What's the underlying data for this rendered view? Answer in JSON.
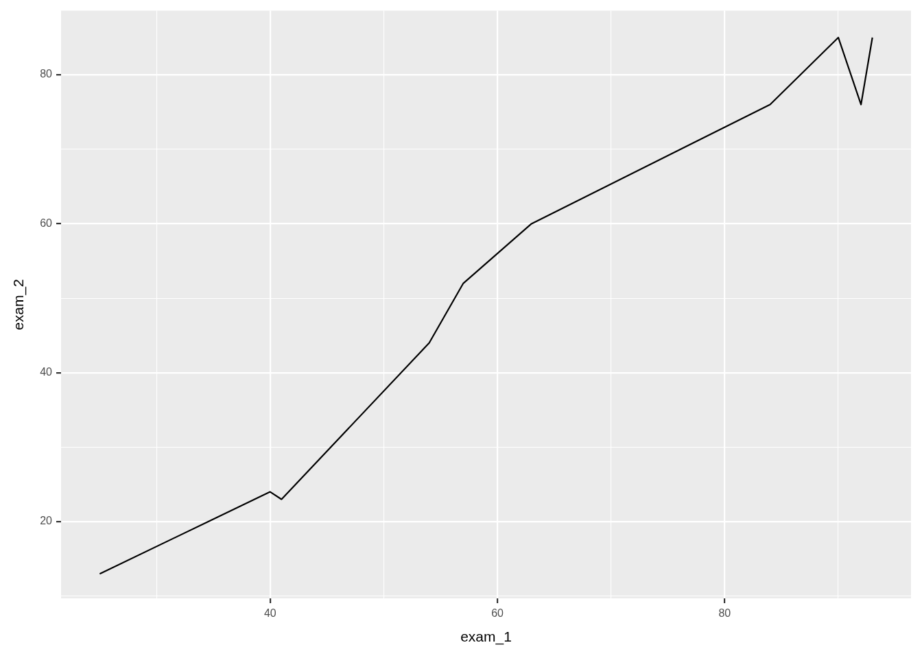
{
  "chart_data": {
    "type": "line",
    "xlabel": "exam_1",
    "ylabel": "exam_2",
    "x": [
      25,
      40,
      41,
      54,
      57,
      63,
      84,
      90,
      92,
      93
    ],
    "series": [
      {
        "color": "#000000",
        "values": [
          13,
          24,
          23,
          44,
          52,
          60,
          76,
          85,
          76,
          85
        ]
      }
    ],
    "xlim": [
      21.6,
      96.4
    ],
    "ylim": [
      9.7,
      88.6
    ],
    "xticks": [
      {
        "value": 30,
        "label": null
      },
      40,
      {
        "value": 50,
        "label": null
      },
      60,
      {
        "value": 70,
        "label": null
      },
      80,
      {
        "value": 90,
        "label": null
      }
    ],
    "yticks": [
      {
        "value": 10,
        "label": null
      },
      20,
      {
        "value": 30,
        "label": null
      },
      40,
      {
        "value": 50,
        "label": null
      },
      60,
      {
        "value": 70,
        "label": null
      },
      80
    ],
    "grid": true,
    "marker": "none",
    "line_style": "solid"
  }
}
